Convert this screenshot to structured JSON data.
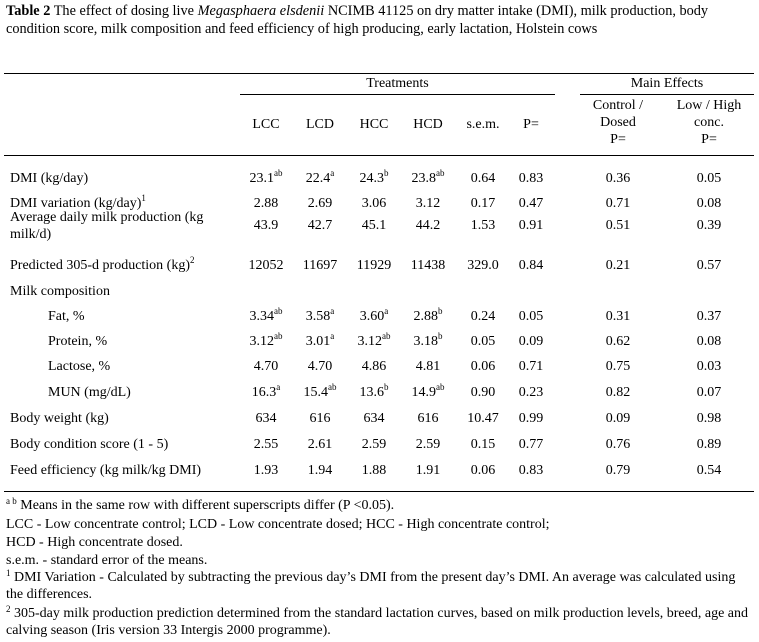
{
  "caption": {
    "label": "Table 2",
    "text_pre": "The effect of dosing live",
    "species": "Megasphaera elsdenii",
    "text_post": "NCIMB 41125 on dry matter intake (DMI), milk production, body condition score, milk composition and feed efficiency of high producing, early lactation, Holstein cows"
  },
  "headers": {
    "treatments": "Treatments",
    "main_effects": "Main Effects",
    "columns": [
      "LCC",
      "LCD",
      "HCC",
      "HCD",
      "s.e.m.",
      "P="
    ],
    "effect1": [
      "Control /",
      "Dosed",
      "P="
    ],
    "effect2": [
      "Low / High",
      "conc.",
      "P="
    ]
  },
  "rows": [
    {
      "label": [
        "DMI (kg/day)"
      ],
      "label_sup": "",
      "cells": [
        {
          "v": "23.1",
          "s": "ab"
        },
        {
          "v": "22.4",
          "s": "a"
        },
        {
          "v": "24.3",
          "s": "b"
        },
        {
          "v": "23.8",
          "s": "ab"
        },
        {
          "v": "0.64",
          "s": ""
        },
        {
          "v": "0.83",
          "s": ""
        },
        {
          "v": "0.36",
          "s": ""
        },
        {
          "v": "0.05",
          "s": ""
        }
      ]
    },
    {
      "label": [
        "DMI variation (kg/day)"
      ],
      "label_sup": "1",
      "cells": [
        {
          "v": "2.88",
          "s": ""
        },
        {
          "v": "2.69",
          "s": ""
        },
        {
          "v": "3.06",
          "s": ""
        },
        {
          "v": "3.12",
          "s": ""
        },
        {
          "v": "0.17",
          "s": ""
        },
        {
          "v": "0.47",
          "s": ""
        },
        {
          "v": "0.71",
          "s": ""
        },
        {
          "v": "0.08",
          "s": ""
        }
      ]
    },
    {
      "label": [
        "Average daily milk production (kg",
        "milk/d)"
      ],
      "label_sup": "",
      "cells": [
        {
          "v": "43.9",
          "s": ""
        },
        {
          "v": "42.7",
          "s": ""
        },
        {
          "v": "45.1",
          "s": ""
        },
        {
          "v": "44.2",
          "s": ""
        },
        {
          "v": "1.53",
          "s": ""
        },
        {
          "v": "0.91",
          "s": ""
        },
        {
          "v": "0.51",
          "s": ""
        },
        {
          "v": "0.39",
          "s": ""
        }
      ]
    },
    {
      "label": [
        "Predicted 305-d production  (kg)"
      ],
      "label_sup": "2",
      "cells": [
        {
          "v": "12052",
          "s": ""
        },
        {
          "v": "11697",
          "s": ""
        },
        {
          "v": "11929",
          "s": ""
        },
        {
          "v": "11438",
          "s": ""
        },
        {
          "v": "329.0",
          "s": ""
        },
        {
          "v": "0.84",
          "s": ""
        },
        {
          "v": "0.21",
          "s": ""
        },
        {
          "v": "0.57",
          "s": ""
        }
      ]
    },
    {
      "label": [
        "Milk composition"
      ],
      "label_sup": "",
      "cells": []
    },
    {
      "label": [
        "Fat, %"
      ],
      "label_sup": "",
      "indent": true,
      "cells": [
        {
          "v": "3.34",
          "s": "ab"
        },
        {
          "v": "3.58",
          "s": "a"
        },
        {
          "v": "3.60",
          "s": "a"
        },
        {
          "v": "2.88",
          "s": "b"
        },
        {
          "v": "0.24",
          "s": ""
        },
        {
          "v": "0.05",
          "s": ""
        },
        {
          "v": "0.31",
          "s": ""
        },
        {
          "v": "0.37",
          "s": ""
        }
      ]
    },
    {
      "label": [
        "Protein, %"
      ],
      "label_sup": "",
      "indent": true,
      "cells": [
        {
          "v": "3.12",
          "s": "ab"
        },
        {
          "v": "3.01",
          "s": "a"
        },
        {
          "v": "3.12",
          "s": "ab"
        },
        {
          "v": "3.18",
          "s": "b"
        },
        {
          "v": "0.05",
          "s": ""
        },
        {
          "v": "0.09",
          "s": ""
        },
        {
          "v": "0.62",
          "s": ""
        },
        {
          "v": "0.08",
          "s": ""
        }
      ]
    },
    {
      "label": [
        "Lactose, %"
      ],
      "label_sup": "",
      "indent": true,
      "cells": [
        {
          "v": "4.70",
          "s": ""
        },
        {
          "v": "4.70",
          "s": ""
        },
        {
          "v": "4.86",
          "s": ""
        },
        {
          "v": "4.81",
          "s": ""
        },
        {
          "v": "0.06",
          "s": ""
        },
        {
          "v": "0.71",
          "s": ""
        },
        {
          "v": "0.75",
          "s": ""
        },
        {
          "v": "0.03",
          "s": ""
        }
      ]
    },
    {
      "label": [
        "MUN (mg/dL)"
      ],
      "label_sup": "",
      "indent": true,
      "cells": [
        {
          "v": "16.3",
          "s": "a"
        },
        {
          "v": "15.4",
          "s": "ab"
        },
        {
          "v": "13.6",
          "s": "b"
        },
        {
          "v": "14.9",
          "s": "ab"
        },
        {
          "v": "0.90",
          "s": ""
        },
        {
          "v": "0.23",
          "s": ""
        },
        {
          "v": "0.82",
          "s": ""
        },
        {
          "v": "0.07",
          "s": ""
        }
      ]
    },
    {
      "label": [
        "Body weight (kg)"
      ],
      "label_sup": "",
      "cells": [
        {
          "v": "634",
          "s": ""
        },
        {
          "v": "616",
          "s": ""
        },
        {
          "v": "634",
          "s": ""
        },
        {
          "v": "616",
          "s": ""
        },
        {
          "v": "10.47",
          "s": ""
        },
        {
          "v": "0.99",
          "s": ""
        },
        {
          "v": "0.09",
          "s": ""
        },
        {
          "v": "0.98",
          "s": ""
        }
      ]
    },
    {
      "label": [
        "Body condition score (1 - 5)"
      ],
      "label_sup": "",
      "cells": [
        {
          "v": "2.55",
          "s": ""
        },
        {
          "v": "2.61",
          "s": ""
        },
        {
          "v": "2.59",
          "s": ""
        },
        {
          "v": "2.59",
          "s": ""
        },
        {
          "v": "0.15",
          "s": ""
        },
        {
          "v": "0.77",
          "s": ""
        },
        {
          "v": "0.76",
          "s": ""
        },
        {
          "v": "0.89",
          "s": ""
        }
      ]
    },
    {
      "label": [
        "Feed efficiency (kg milk/kg DMI)"
      ],
      "label_sup": "",
      "cells": [
        {
          "v": "1.93",
          "s": ""
        },
        {
          "v": "1.94",
          "s": ""
        },
        {
          "v": "1.88",
          "s": ""
        },
        {
          "v": "1.91",
          "s": ""
        },
        {
          "v": "0.06",
          "s": ""
        },
        {
          "v": "0.83",
          "s": ""
        },
        {
          "v": "0.79",
          "s": ""
        },
        {
          "v": "0.54",
          "s": ""
        }
      ]
    }
  ],
  "footnotes": {
    "ab_mark": "a b",
    "ab_text": "Means in the same row with different superscripts differ (P <0.05).",
    "abbrev1": "LCC - Low concentrate control; LCD - Low concentrate dosed; HCC - High concentrate control;",
    "abbrev2": "HCD - High concentrate dosed.",
    "sem": "s.e.m. - standard error of the means.",
    "note1_mark": "1",
    "note1": "DMI Variation - Calculated by subtracting the previous day’s DMI from the present day’s DMI. An average was calculated using the differences.",
    "note2_mark": "2",
    "note2": "305-day milk production prediction determined from the standard lactation curves, based on milk production levels, breed, age and calving season (Iris version 33 Intergis 2000 programme)."
  }
}
